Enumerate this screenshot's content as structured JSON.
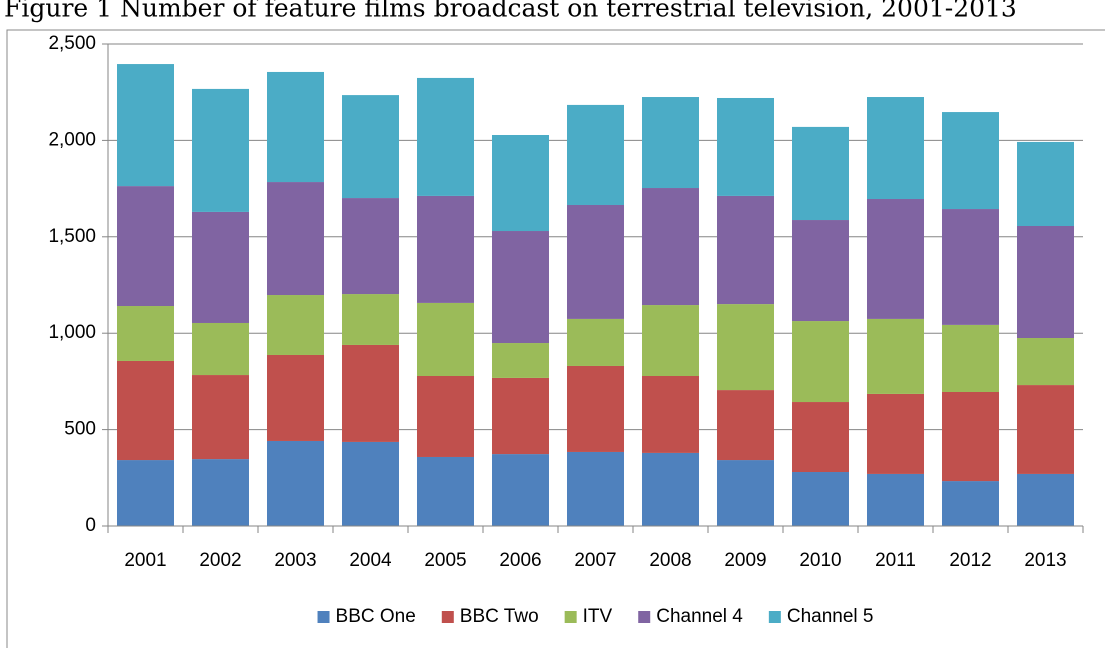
{
  "chart_data": {
    "type": "bar",
    "stacked": true,
    "title": "Figure 1 Number of feature films broadcast on terrestrial television, 2001-2013",
    "categories": [
      "2001",
      "2002",
      "2003",
      "2004",
      "2005",
      "2006",
      "2007",
      "2008",
      "2009",
      "2010",
      "2011",
      "2012",
      "2013"
    ],
    "series": [
      {
        "name": "BBC One",
        "color": "#4f81bd",
        "values": [
          342,
          347,
          441,
          436,
          358,
          373,
          384,
          379,
          342,
          280,
          270,
          233,
          270
        ]
      },
      {
        "name": "BBC Two",
        "color": "#c0504d",
        "values": [
          514,
          436,
          446,
          503,
          420,
          395,
          446,
          399,
          363,
          363,
          415,
          462,
          461
        ]
      },
      {
        "name": "ITV",
        "color": "#9bbb59",
        "values": [
          285,
          270,
          311,
          264,
          379,
          181,
          244,
          368,
          446,
          420,
          389,
          348,
          244
        ]
      },
      {
        "name": "Channel 4",
        "color": "#8064a2",
        "values": [
          622,
          576,
          586,
          498,
          555,
          581,
          591,
          607,
          561,
          524,
          622,
          601,
          581
        ]
      },
      {
        "name": "Channel 5",
        "color": "#4bacc6",
        "values": [
          633,
          638,
          571,
          534,
          612,
          498,
          519,
          472,
          508,
          483,
          529,
          503,
          436
        ]
      }
    ],
    "ylim": [
      0,
      2500
    ],
    "yticks": [
      0,
      500,
      {
        "value": 1000,
        "label": "1,000"
      },
      {
        "value": 1500,
        "label": "1,500"
      },
      {
        "value": 2000,
        "label": "2,000"
      },
      {
        "value": 2500,
        "label": "2,500"
      }
    ],
    "grid": true,
    "legend": "bottom"
  }
}
